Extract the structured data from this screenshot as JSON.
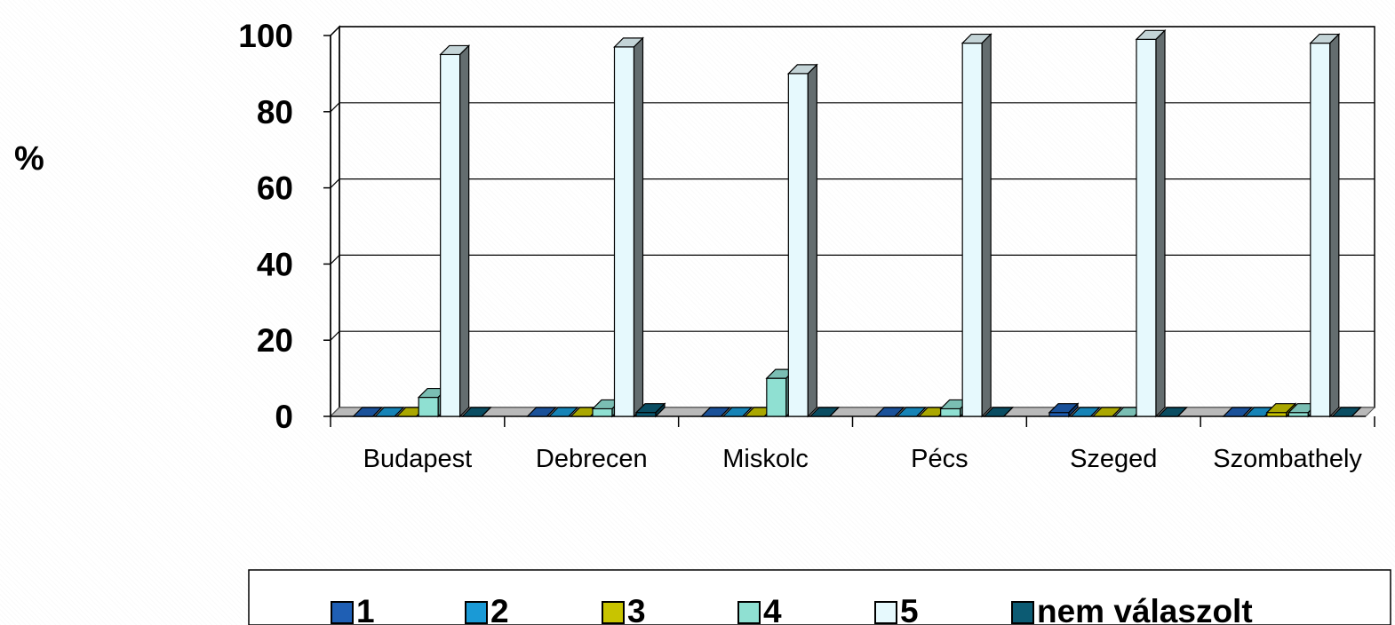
{
  "chart_data": {
    "type": "bar",
    "title": "",
    "xlabel": "",
    "ylabel": "%",
    "ylim": [
      0,
      100
    ],
    "yticks": [
      "0",
      "20",
      "40",
      "60",
      "80",
      "100"
    ],
    "grid": true,
    "legend_position": "bottom",
    "categories": [
      "Budapest",
      "Debrecen",
      "Miskolc",
      "Pécs",
      "Szeged",
      "Szombathely"
    ],
    "series": [
      {
        "name": "1",
        "color": "#1f5fb4",
        "values": [
          0,
          0,
          0,
          0,
          1,
          0
        ]
      },
      {
        "name": "2",
        "color": "#1a9ad6",
        "values": [
          0,
          0,
          0,
          0,
          0,
          0
        ]
      },
      {
        "name": "3",
        "color": "#c8c400",
        "values": [
          0,
          0,
          0,
          0,
          0,
          1
        ]
      },
      {
        "name": "4",
        "color": "#8fe0d2",
        "values": [
          5,
          2,
          10,
          2,
          0,
          1
        ]
      },
      {
        "name": "5",
        "color": "#e6f9fd",
        "values": [
          95,
          97,
          90,
          98,
          99,
          98
        ]
      },
      {
        "name": "nem válaszolt",
        "color": "#0c5b73",
        "values": [
          0,
          1,
          0,
          0,
          0,
          0
        ]
      }
    ]
  }
}
